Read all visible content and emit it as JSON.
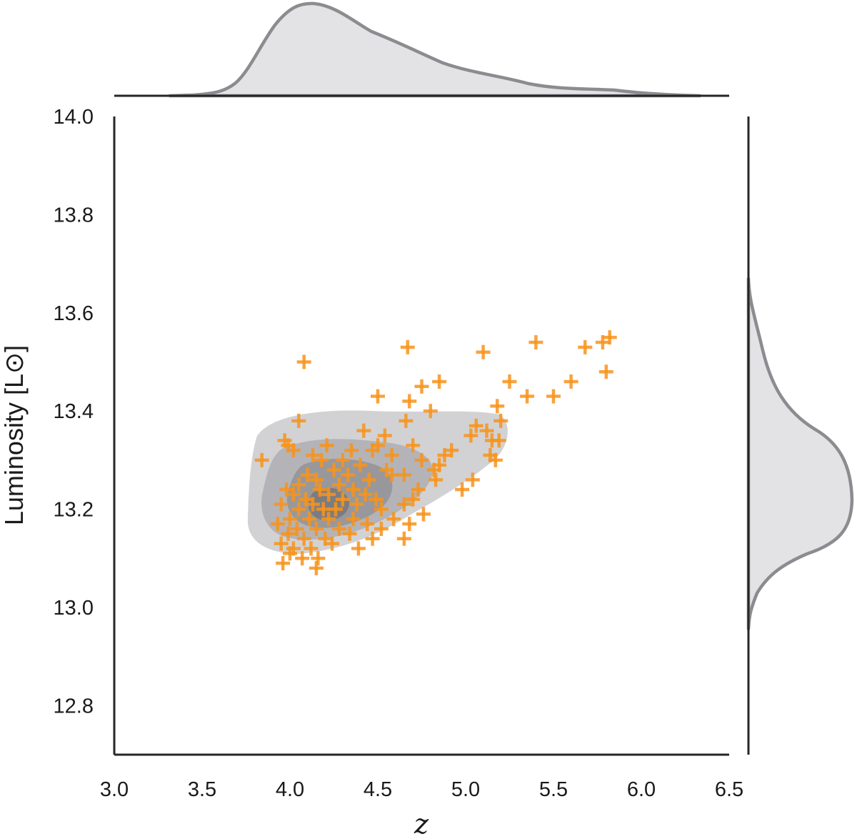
{
  "chart_data": {
    "type": "scatter",
    "xlabel": "z",
    "ylabel": "Luminosity [L⊙]",
    "xlim": [
      3.0,
      6.5
    ],
    "ylim": [
      12.7,
      14.0
    ],
    "x_ticks": [
      "3.0",
      "3.5",
      "4.0",
      "4.5",
      "5.0",
      "5.5",
      "6.0",
      "6.5"
    ],
    "y_ticks": [
      "12.8",
      "13.0",
      "13.2",
      "13.4",
      "13.6",
      "13.8",
      "14.0"
    ],
    "grid": false,
    "marker": "+",
    "colors": {
      "points": "#f7941d",
      "kde_fill": "#e3e3e5",
      "kde_line": "#8c8c90",
      "contour_levels": [
        "#d2d2d5",
        "#b4b4b8",
        "#98989c",
        "#7c7c80"
      ]
    },
    "marginals": {
      "top": "kde of z",
      "right": "kde of luminosity"
    },
    "contours": "2d kde, 4 filled levels",
    "points": [
      {
        "x": 4.08,
        "y": 13.5
      },
      {
        "x": 4.67,
        "y": 13.53
      },
      {
        "x": 5.1,
        "y": 13.52
      },
      {
        "x": 5.4,
        "y": 13.54
      },
      {
        "x": 5.82,
        "y": 13.55
      },
      {
        "x": 5.78,
        "y": 13.54
      },
      {
        "x": 5.68,
        "y": 13.53
      },
      {
        "x": 5.8,
        "y": 13.48
      },
      {
        "x": 5.6,
        "y": 13.46
      },
      {
        "x": 5.25,
        "y": 13.46
      },
      {
        "x": 5.35,
        "y": 13.43
      },
      {
        "x": 5.5,
        "y": 13.43
      },
      {
        "x": 4.75,
        "y": 13.45
      },
      {
        "x": 4.85,
        "y": 13.46
      },
      {
        "x": 4.5,
        "y": 13.43
      },
      {
        "x": 4.68,
        "y": 13.42
      },
      {
        "x": 4.8,
        "y": 13.4
      },
      {
        "x": 5.18,
        "y": 13.41
      },
      {
        "x": 4.05,
        "y": 13.38
      },
      {
        "x": 4.66,
        "y": 13.38
      },
      {
        "x": 5.06,
        "y": 13.37
      },
      {
        "x": 5.2,
        "y": 13.38
      },
      {
        "x": 5.12,
        "y": 13.36
      },
      {
        "x": 4.42,
        "y": 13.36
      },
      {
        "x": 4.54,
        "y": 13.35
      },
      {
        "x": 4.5,
        "y": 13.33
      },
      {
        "x": 5.03,
        "y": 13.35
      },
      {
        "x": 5.15,
        "y": 13.34
      },
      {
        "x": 5.19,
        "y": 13.34
      },
      {
        "x": 3.97,
        "y": 13.34
      },
      {
        "x": 3.99,
        "y": 13.33
      },
      {
        "x": 4.02,
        "y": 13.32
      },
      {
        "x": 4.21,
        "y": 13.33
      },
      {
        "x": 4.35,
        "y": 13.32
      },
      {
        "x": 4.47,
        "y": 13.32
      },
      {
        "x": 4.7,
        "y": 13.33
      },
      {
        "x": 4.92,
        "y": 13.32
      },
      {
        "x": 5.14,
        "y": 13.31
      },
      {
        "x": 5.17,
        "y": 13.3
      },
      {
        "x": 3.84,
        "y": 13.3
      },
      {
        "x": 4.13,
        "y": 13.31
      },
      {
        "x": 4.18,
        "y": 13.3
      },
      {
        "x": 4.3,
        "y": 13.3
      },
      {
        "x": 4.4,
        "y": 13.29
      },
      {
        "x": 4.58,
        "y": 13.31
      },
      {
        "x": 4.75,
        "y": 13.3
      },
      {
        "x": 4.88,
        "y": 13.31
      },
      {
        "x": 4.85,
        "y": 13.29
      },
      {
        "x": 4.25,
        "y": 13.28
      },
      {
        "x": 4.33,
        "y": 13.27
      },
      {
        "x": 4.55,
        "y": 13.28
      },
      {
        "x": 4.65,
        "y": 13.27
      },
      {
        "x": 4.82,
        "y": 13.28
      },
      {
        "x": 4.1,
        "y": 13.27
      },
      {
        "x": 4.15,
        "y": 13.26
      },
      {
        "x": 4.05,
        "y": 13.25
      },
      {
        "x": 4.28,
        "y": 13.25
      },
      {
        "x": 4.45,
        "y": 13.26
      },
      {
        "x": 4.58,
        "y": 13.27
      },
      {
        "x": 4.83,
        "y": 13.26
      },
      {
        "x": 5.04,
        "y": 13.26
      },
      {
        "x": 4.98,
        "y": 13.24
      },
      {
        "x": 3.98,
        "y": 13.24
      },
      {
        "x": 4.02,
        "y": 13.23
      },
      {
        "x": 4.17,
        "y": 13.24
      },
      {
        "x": 4.22,
        "y": 13.23
      },
      {
        "x": 4.36,
        "y": 13.24
      },
      {
        "x": 4.43,
        "y": 13.23
      },
      {
        "x": 4.73,
        "y": 13.24
      },
      {
        "x": 4.7,
        "y": 13.22
      },
      {
        "x": 4.09,
        "y": 13.22
      },
      {
        "x": 4.13,
        "y": 13.21
      },
      {
        "x": 4.3,
        "y": 13.22
      },
      {
        "x": 4.49,
        "y": 13.22
      },
      {
        "x": 4.65,
        "y": 13.21
      },
      {
        "x": 3.95,
        "y": 13.21
      },
      {
        "x": 4.05,
        "y": 13.2
      },
      {
        "x": 4.19,
        "y": 13.2
      },
      {
        "x": 4.26,
        "y": 13.2
      },
      {
        "x": 4.38,
        "y": 13.21
      },
      {
        "x": 4.52,
        "y": 13.2
      },
      {
        "x": 4.76,
        "y": 13.19
      },
      {
        "x": 4.59,
        "y": 13.18
      },
      {
        "x": 4.0,
        "y": 13.18
      },
      {
        "x": 4.11,
        "y": 13.18
      },
      {
        "x": 4.22,
        "y": 13.18
      },
      {
        "x": 4.36,
        "y": 13.18
      },
      {
        "x": 4.44,
        "y": 13.17
      },
      {
        "x": 4.68,
        "y": 13.17
      },
      {
        "x": 3.93,
        "y": 13.17
      },
      {
        "x": 4.04,
        "y": 13.16
      },
      {
        "x": 4.15,
        "y": 13.16
      },
      {
        "x": 4.28,
        "y": 13.16
      },
      {
        "x": 4.52,
        "y": 13.16
      },
      {
        "x": 3.99,
        "y": 13.15
      },
      {
        "x": 4.08,
        "y": 13.14
      },
      {
        "x": 4.2,
        "y": 13.14
      },
      {
        "x": 4.34,
        "y": 13.15
      },
      {
        "x": 4.47,
        "y": 13.14
      },
      {
        "x": 4.65,
        "y": 13.14
      },
      {
        "x": 3.95,
        "y": 13.13
      },
      {
        "x": 4.02,
        "y": 13.12
      },
      {
        "x": 4.12,
        "y": 13.12
      },
      {
        "x": 4.24,
        "y": 13.13
      },
      {
        "x": 4.39,
        "y": 13.12
      },
      {
        "x": 4.0,
        "y": 13.11
      },
      {
        "x": 4.07,
        "y": 13.1
      },
      {
        "x": 4.16,
        "y": 13.1
      },
      {
        "x": 3.96,
        "y": 13.09
      },
      {
        "x": 4.15,
        "y": 13.08
      }
    ]
  }
}
